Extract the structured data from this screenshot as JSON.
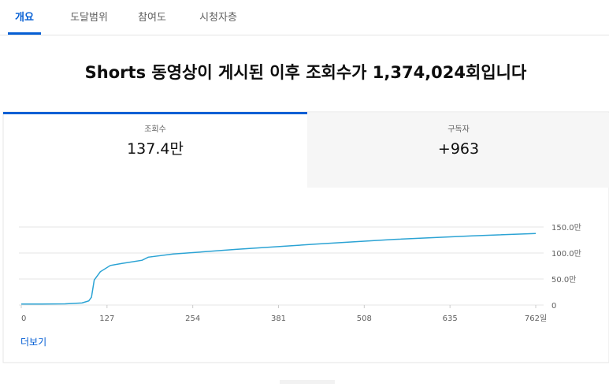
{
  "tabs": [
    "개요",
    "도달범위",
    "참여도",
    "시청자층"
  ],
  "headline": "Shorts 동영상이 게시된 이후 조회수가 1,374,024회입니다",
  "cards": [
    {
      "label": "조회수",
      "value": "137.4만"
    },
    {
      "label": "구독자",
      "value": "+963"
    }
  ],
  "chart_data": {
    "type": "line",
    "x": [
      0,
      30,
      65,
      90,
      100,
      104,
      108,
      117,
      132,
      149,
      179,
      188,
      225,
      318,
      435,
      552,
      668,
      762
    ],
    "series": [
      {
        "name": "조회수",
        "color": "#2ba3d4",
        "values": [
          20000,
          20000,
          22000,
          40000,
          80000,
          150000,
          480000,
          640000,
          760000,
          800000,
          860000,
          920000,
          980000,
          1070000,
          1170000,
          1260000,
          1330000,
          1374000
        ]
      }
    ],
    "xlim": [
      0,
      762
    ],
    "xticks": [
      0,
      127,
      254,
      381,
      508,
      635,
      {
        "value": 762,
        "label": "762일"
      }
    ],
    "ylim": [
      0,
      1500000
    ],
    "yticks": [
      0,
      {
        "value": 500000,
        "label": "50.0만"
      },
      {
        "value": 1000000,
        "label": "100.0만"
      },
      {
        "value": 1500000,
        "label": "150.0만"
      }
    ],
    "grid": true
  },
  "more_link": "더보기"
}
